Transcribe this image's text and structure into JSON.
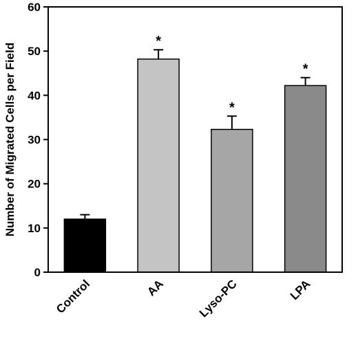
{
  "chart_data": {
    "type": "bar",
    "title": "",
    "xlabel": "",
    "ylabel": "Number of Migrated Cells per Field",
    "ylim": [
      0,
      60
    ],
    "yticks": [
      0,
      10,
      20,
      30,
      40,
      50,
      60
    ],
    "grid": false,
    "categories": [
      "Control",
      "AA",
      "Lyso-PC",
      "LPA"
    ],
    "values": [
      12.0,
      48.2,
      32.3,
      42.2
    ],
    "errors": [
      1.0,
      2.1,
      3.0,
      1.8
    ],
    "annotations": [
      "",
      "*",
      "*",
      "*"
    ],
    "colors": [
      "#000000",
      "#c4c4c4",
      "#a6a6a6",
      "#8a8a8a"
    ]
  }
}
